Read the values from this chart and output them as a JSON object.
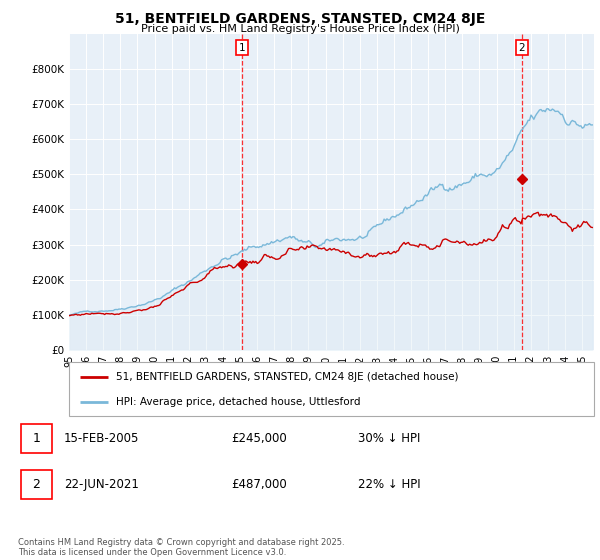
{
  "title": "51, BENTFIELD GARDENS, STANSTED, CM24 8JE",
  "subtitle": "Price paid vs. HM Land Registry's House Price Index (HPI)",
  "legend_line1": "51, BENTFIELD GARDENS, STANSTED, CM24 8JE (detached house)",
  "legend_line2": "HPI: Average price, detached house, Uttlesford",
  "sale1_date": "15-FEB-2005",
  "sale1_price": "£245,000",
  "sale1_hpi": "30% ↓ HPI",
  "sale2_date": "22-JUN-2021",
  "sale2_price": "£487,000",
  "sale2_hpi": "22% ↓ HPI",
  "footer": "Contains HM Land Registry data © Crown copyright and database right 2025.\nThis data is licensed under the Open Government Licence v3.0.",
  "hpi_color": "#7ab8d9",
  "hpi_fill_color": "#daeaf5",
  "price_color": "#cc0000",
  "ylim_min": 0,
  "ylim_max": 900000,
  "yticks": [
    0,
    100000,
    200000,
    300000,
    400000,
    500000,
    600000,
    700000,
    800000
  ],
  "ytick_labels": [
    "£0",
    "£100K",
    "£200K",
    "£300K",
    "£400K",
    "£500K",
    "£600K",
    "£700K",
    "£800K"
  ],
  "xlim_min": 1995.0,
  "xlim_max": 2025.7,
  "xtick_labels": [
    "95",
    "96",
    "97",
    "98",
    "99",
    "00",
    "01",
    "02",
    "03",
    "04",
    "05",
    "06",
    "07",
    "08",
    "09",
    "10",
    "11",
    "12",
    "13",
    "14",
    "15",
    "16",
    "17",
    "18",
    "19",
    "20",
    "21",
    "22",
    "23",
    "24",
    "25"
  ],
  "xticks": [
    1995,
    1996,
    1997,
    1998,
    1999,
    2000,
    2001,
    2002,
    2003,
    2004,
    2005,
    2006,
    2007,
    2008,
    2009,
    2010,
    2011,
    2012,
    2013,
    2014,
    2015,
    2016,
    2017,
    2018,
    2019,
    2020,
    2021,
    2022,
    2023,
    2024,
    2025
  ],
  "sale1_x": 2005.12,
  "sale2_x": 2021.47,
  "sale1_y": 245000,
  "sale2_y": 487000,
  "chart_bg": "#e8f0f8",
  "grid_color": "#ffffff",
  "title_fontsize": 10,
  "subtitle_fontsize": 8
}
